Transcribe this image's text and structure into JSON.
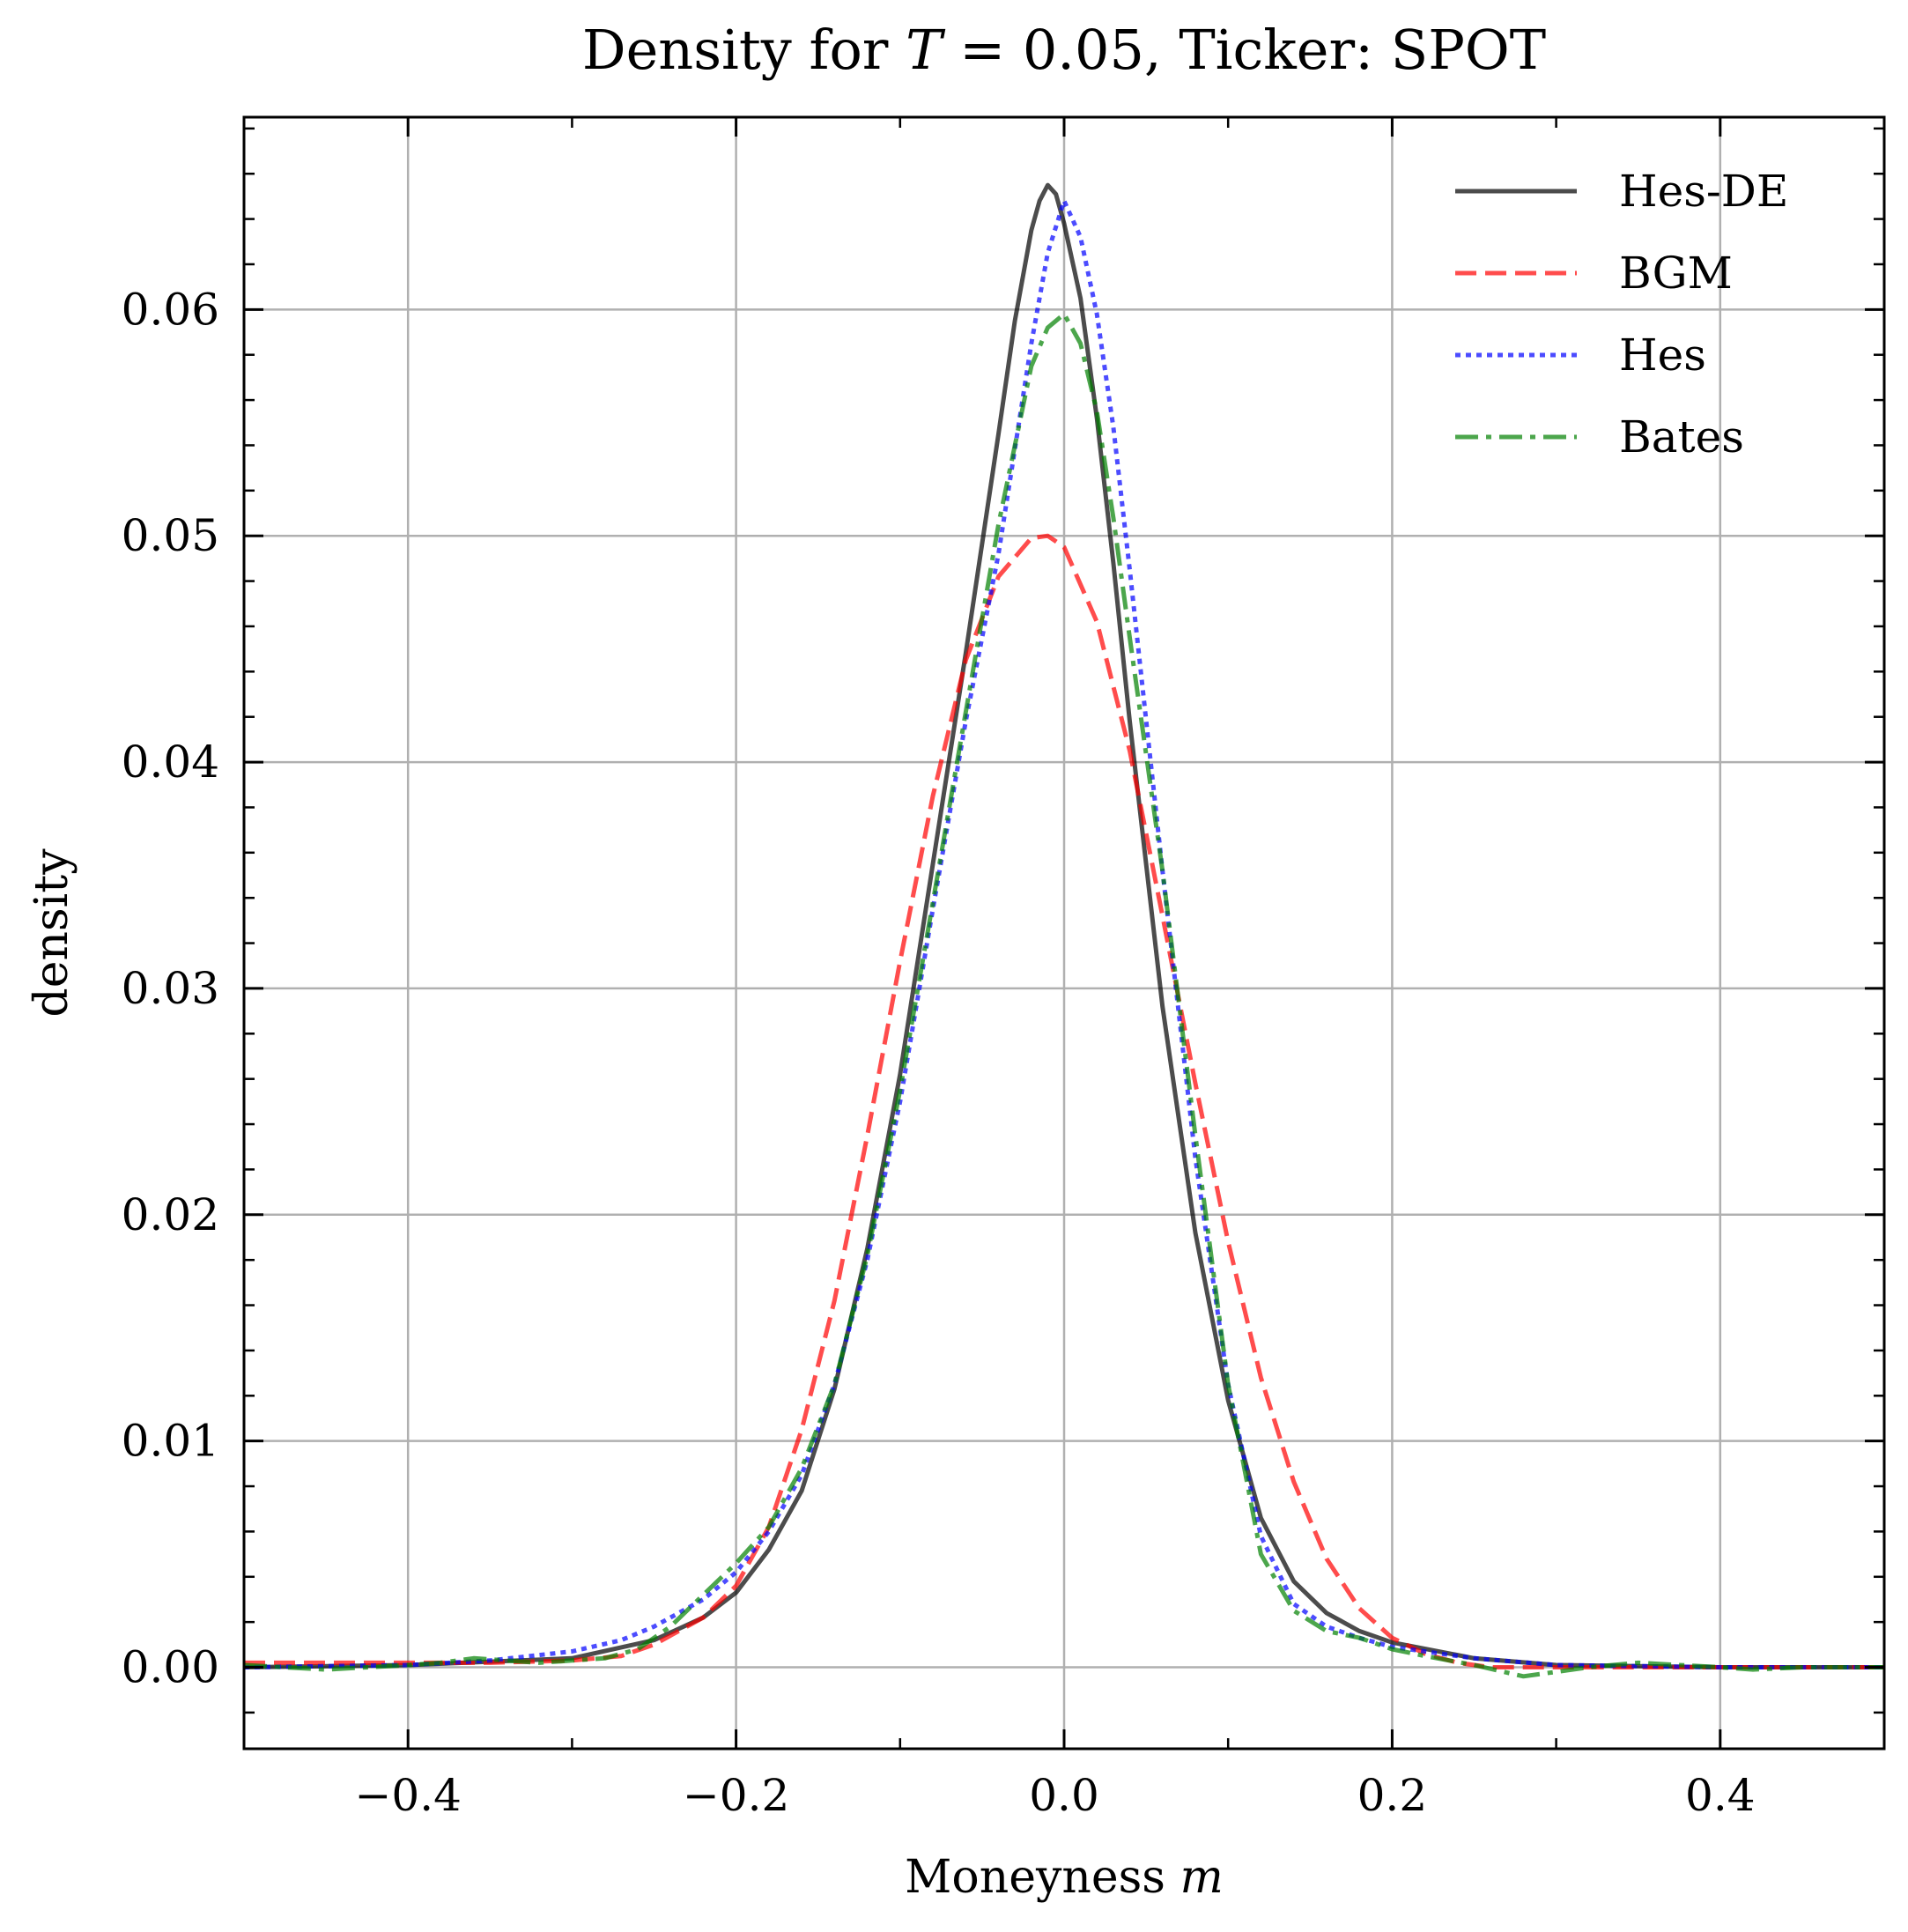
{
  "chart_data": {
    "type": "line",
    "title": "Density for T = 0.05, Ticker: SPOT",
    "title_parts": {
      "prefix": "Density for ",
      "var": "T",
      "suffix": " = 0.05, Ticker: SPOT"
    },
    "xlabel": "Moneyness m",
    "xlabel_parts": {
      "text": "Moneyness ",
      "var": "m"
    },
    "ylabel": "density",
    "xlim": [
      -0.5,
      0.5
    ],
    "ylim": [
      -0.0036,
      0.0685
    ],
    "grid": true,
    "legend_position": "top-right",
    "x_ticks": [
      {
        "value": -0.4,
        "label": "−0.4"
      },
      {
        "value": -0.2,
        "label": "−0.2"
      },
      {
        "value": 0.0,
        "label": "0.0"
      },
      {
        "value": 0.2,
        "label": "0.2"
      },
      {
        "value": 0.4,
        "label": "0.4"
      }
    ],
    "y_ticks": [
      {
        "value": 0.0,
        "label": "0.00"
      },
      {
        "value": 0.01,
        "label": "0.01"
      },
      {
        "value": 0.02,
        "label": "0.02"
      },
      {
        "value": 0.03,
        "label": "0.03"
      },
      {
        "value": 0.04,
        "label": "0.04"
      },
      {
        "value": 0.05,
        "label": "0.05"
      },
      {
        "value": 0.06,
        "label": "0.06"
      }
    ],
    "series": [
      {
        "name": "Hes-DE",
        "color": "#000000",
        "dash": "solid",
        "points": [
          [
            -0.5,
            0.0
          ],
          [
            -0.4,
            0.0001
          ],
          [
            -0.3,
            0.0004
          ],
          [
            -0.25,
            0.0012
          ],
          [
            -0.22,
            0.0022
          ],
          [
            -0.2,
            0.0033
          ],
          [
            -0.18,
            0.0052
          ],
          [
            -0.16,
            0.0078
          ],
          [
            -0.14,
            0.0123
          ],
          [
            -0.12,
            0.0185
          ],
          [
            -0.1,
            0.0262
          ],
          [
            -0.08,
            0.0355
          ],
          [
            -0.06,
            0.0448
          ],
          [
            -0.04,
            0.0545
          ],
          [
            -0.03,
            0.0595
          ],
          [
            -0.02,
            0.0635
          ],
          [
            -0.015,
            0.0648
          ],
          [
            -0.01,
            0.0655
          ],
          [
            -0.005,
            0.0651
          ],
          [
            0.0,
            0.0638
          ],
          [
            0.01,
            0.0605
          ],
          [
            0.02,
            0.0552
          ],
          [
            0.03,
            0.0488
          ],
          [
            0.04,
            0.0418
          ],
          [
            0.06,
            0.0292
          ],
          [
            0.08,
            0.0192
          ],
          [
            0.1,
            0.0118
          ],
          [
            0.12,
            0.0066
          ],
          [
            0.14,
            0.0038
          ],
          [
            0.16,
            0.0024
          ],
          [
            0.18,
            0.0016
          ],
          [
            0.2,
            0.0011
          ],
          [
            0.25,
            0.0004
          ],
          [
            0.3,
            0.0001
          ],
          [
            0.4,
            0.0
          ],
          [
            0.5,
            0.0
          ]
        ]
      },
      {
        "name": "BGM",
        "color": "#ff0000",
        "dash": "dashed",
        "points": [
          [
            -0.5,
            0.0002
          ],
          [
            -0.4,
            0.0002
          ],
          [
            -0.35,
            0.0002
          ],
          [
            -0.3,
            0.0003
          ],
          [
            -0.27,
            0.0005
          ],
          [
            -0.25,
            0.001
          ],
          [
            -0.22,
            0.0022
          ],
          [
            -0.2,
            0.0036
          ],
          [
            -0.18,
            0.0062
          ],
          [
            -0.16,
            0.0105
          ],
          [
            -0.14,
            0.0162
          ],
          [
            -0.12,
            0.0235
          ],
          [
            -0.1,
            0.0312
          ],
          [
            -0.08,
            0.0385
          ],
          [
            -0.06,
            0.0445
          ],
          [
            -0.04,
            0.0482
          ],
          [
            -0.02,
            0.0499
          ],
          [
            -0.01,
            0.05
          ],
          [
            0.0,
            0.0495
          ],
          [
            0.02,
            0.0462
          ],
          [
            0.04,
            0.0405
          ],
          [
            0.06,
            0.0332
          ],
          [
            0.08,
            0.0258
          ],
          [
            0.1,
            0.0188
          ],
          [
            0.12,
            0.0128
          ],
          [
            0.14,
            0.0082
          ],
          [
            0.16,
            0.0048
          ],
          [
            0.18,
            0.0026
          ],
          [
            0.2,
            0.0013
          ],
          [
            0.22,
            0.0006
          ],
          [
            0.24,
            0.0002
          ],
          [
            0.26,
            0.0
          ],
          [
            0.3,
            0.0
          ],
          [
            0.4,
            0.0
          ],
          [
            0.5,
            0.0
          ]
        ]
      },
      {
        "name": "Hes",
        "color": "#0000ff",
        "dash": "dotted",
        "points": [
          [
            -0.5,
            0.0
          ],
          [
            -0.4,
            0.0001
          ],
          [
            -0.35,
            0.0003
          ],
          [
            -0.3,
            0.0007
          ],
          [
            -0.27,
            0.0012
          ],
          [
            -0.25,
            0.0018
          ],
          [
            -0.22,
            0.003
          ],
          [
            -0.2,
            0.0042
          ],
          [
            -0.18,
            0.006
          ],
          [
            -0.16,
            0.0085
          ],
          [
            -0.14,
            0.0125
          ],
          [
            -0.12,
            0.018
          ],
          [
            -0.1,
            0.025
          ],
          [
            -0.08,
            0.0335
          ],
          [
            -0.06,
            0.0418
          ],
          [
            -0.04,
            0.0492
          ],
          [
            -0.02,
            0.0585
          ],
          [
            -0.01,
            0.0625
          ],
          [
            0.0,
            0.0648
          ],
          [
            0.01,
            0.0632
          ],
          [
            0.02,
            0.0598
          ],
          [
            0.03,
            0.0548
          ],
          [
            0.04,
            0.0485
          ],
          [
            0.06,
            0.0352
          ],
          [
            0.08,
            0.0225
          ],
          [
            0.1,
            0.0125
          ],
          [
            0.12,
            0.0058
          ],
          [
            0.14,
            0.0028
          ],
          [
            0.16,
            0.0018
          ],
          [
            0.18,
            0.0013
          ],
          [
            0.2,
            0.0009
          ],
          [
            0.25,
            0.0004
          ],
          [
            0.3,
            0.0001
          ],
          [
            0.4,
            0.0
          ],
          [
            0.5,
            0.0
          ]
        ]
      },
      {
        "name": "Bates",
        "color": "#008000",
        "dash": "dashdot",
        "points": [
          [
            -0.5,
            0.0001
          ],
          [
            -0.45,
            -0.0001
          ],
          [
            -0.4,
            0.0001
          ],
          [
            -0.38,
            0.0002
          ],
          [
            -0.36,
            0.0004
          ],
          [
            -0.34,
            0.0003
          ],
          [
            -0.32,
            0.0002
          ],
          [
            -0.3,
            0.0003
          ],
          [
            -0.28,
            0.0004
          ],
          [
            -0.26,
            0.0008
          ],
          [
            -0.24,
            0.0018
          ],
          [
            -0.22,
            0.0032
          ],
          [
            -0.2,
            0.0046
          ],
          [
            -0.18,
            0.0062
          ],
          [
            -0.16,
            0.0088
          ],
          [
            -0.14,
            0.0125
          ],
          [
            -0.12,
            0.0182
          ],
          [
            -0.1,
            0.0255
          ],
          [
            -0.08,
            0.0338
          ],
          [
            -0.06,
            0.0422
          ],
          [
            -0.04,
            0.0505
          ],
          [
            -0.02,
            0.0575
          ],
          [
            -0.01,
            0.0592
          ],
          [
            0.0,
            0.0598
          ],
          [
            0.01,
            0.0585
          ],
          [
            0.02,
            0.0555
          ],
          [
            0.03,
            0.0508
          ],
          [
            0.04,
            0.0455
          ],
          [
            0.06,
            0.0352
          ],
          [
            0.08,
            0.0235
          ],
          [
            0.1,
            0.0125
          ],
          [
            0.12,
            0.005
          ],
          [
            0.14,
            0.0025
          ],
          [
            0.16,
            0.0016
          ],
          [
            0.18,
            0.0013
          ],
          [
            0.2,
            0.0008
          ],
          [
            0.22,
            0.0005
          ],
          [
            0.25,
            0.0001
          ],
          [
            0.28,
            -0.0004
          ],
          [
            0.3,
            -0.0002
          ],
          [
            0.32,
            0.0
          ],
          [
            0.35,
            0.0002
          ],
          [
            0.4,
            0.0
          ],
          [
            0.42,
            -0.0001
          ],
          [
            0.45,
            0.0
          ],
          [
            0.5,
            0.0
          ]
        ]
      }
    ]
  }
}
